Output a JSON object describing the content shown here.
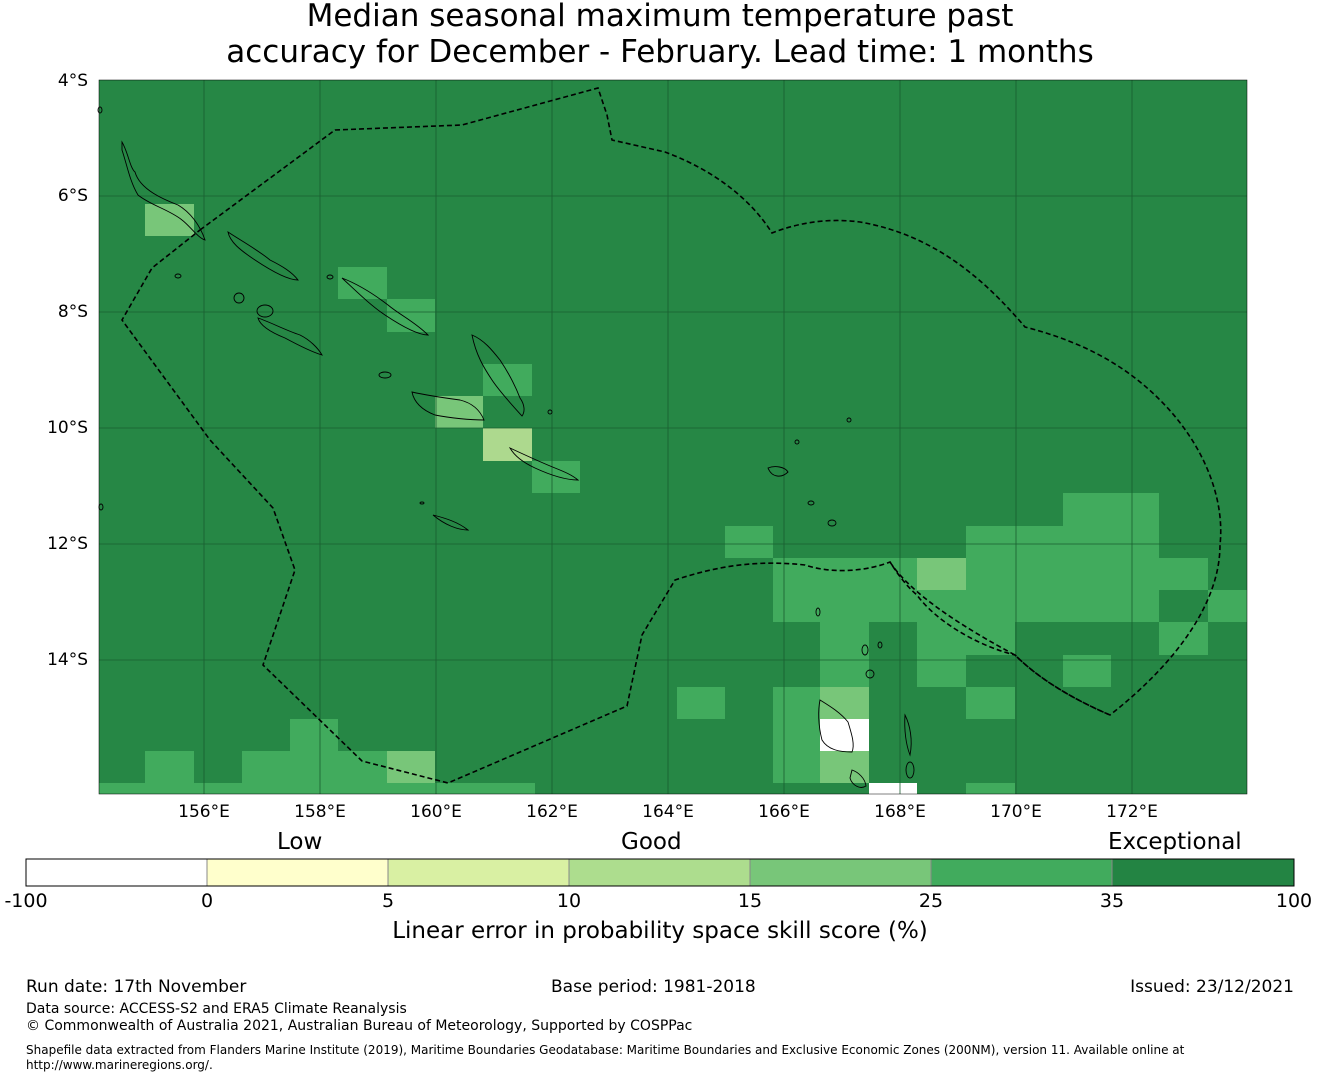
{
  "title": {
    "line1": "Median seasonal maximum temperature past",
    "line2": "accuracy for December - February. Lead time: 1 months"
  },
  "map": {
    "latitude_labels": [
      "4°S",
      "6°S",
      "8°S",
      "10°S",
      "12°S",
      "14°S"
    ],
    "longitude_labels": [
      "156°E",
      "158°E",
      "160°E",
      "162°E",
      "164°E",
      "166°E",
      "168°E",
      "170°E",
      "172°E"
    ],
    "background_color": "#268745",
    "cell_colors": {
      "10-15": "#add98e",
      "15-25": "#78c679",
      "25-35": "#41ab5d",
      "35-100": "#238443",
      "no-data": "#ffffff"
    }
  },
  "colorbar": {
    "category_labels": [
      "Low",
      "Good",
      "Exceptional"
    ],
    "ticks": [
      "-100",
      "0",
      "5",
      "10",
      "15",
      "25",
      "35",
      "100"
    ],
    "colors": [
      "#ffffff",
      "#ffffcc",
      "#d9f0a3",
      "#addd8e",
      "#78c679",
      "#41ab5d",
      "#238443"
    ],
    "label": "Linear error in probability space skill score (%)"
  },
  "footer": {
    "run_date": "Run date: 17th November",
    "base_period": "Base period: 1981-2018",
    "issued": "Issued: 23/12/2021",
    "data_source": "Data source: ACCESS-S2 and ERA5 Climate Reanalysis",
    "copyright": "© Commonwealth of Australia 2021, Australian Bureau of Meteorology, Supported by COSPPac",
    "shapefile_line1": "Shapefile data extracted from Flanders Marine Institute (2019), Maritime Boundaries Geodatabase: Maritime Boundaries and Exclusive Economic Zones (200NM), version 11. Available online at",
    "shapefile_line2": "http://www.marineregions.org/."
  }
}
